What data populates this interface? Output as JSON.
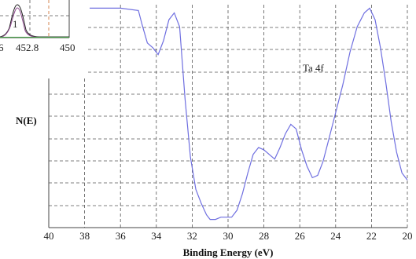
{
  "chart_data": {
    "type": "line",
    "xlabel": "Binding Energy (eV)",
    "ylabel": "N(E)",
    "annotation": "Ta 4f",
    "xlim": [
      40,
      20
    ],
    "x_ticks": [
      "40",
      "38",
      "36",
      "34",
      "32",
      "30",
      "28",
      "26",
      "24",
      "22",
      "20"
    ],
    "grid": true,
    "series_color": "#6f6fe0",
    "series": [
      {
        "x": [
          37.5,
          36.0,
          35.0,
          34.8,
          34.5,
          34.2,
          33.9,
          33.6,
          33.3,
          33.0,
          32.7,
          32.4,
          32.1,
          31.8,
          31.5,
          31.2,
          31.0,
          30.7,
          30.4,
          30.1,
          29.8,
          29.5,
          29.2,
          28.9,
          28.6,
          28.3,
          28.0,
          27.7,
          27.4,
          27.1,
          26.8,
          26.5,
          26.2,
          25.9,
          25.6,
          25.3,
          25.0,
          24.7,
          24.4,
          24.0,
          23.6,
          23.2,
          22.8,
          22.4,
          22.1,
          21.8,
          21.5,
          21.2,
          20.9,
          20.6,
          20.3,
          20.0
        ],
        "y": [
          8.4,
          8.4,
          8.3,
          7.7,
          6.9,
          6.7,
          6.4,
          7.0,
          7.9,
          8.2,
          7.6,
          4.5,
          2.0,
          0.6,
          0.0,
          -0.5,
          -0.7,
          -0.7,
          -0.6,
          -0.6,
          -0.6,
          -0.3,
          0.4,
          1.3,
          2.1,
          2.4,
          2.3,
          2.1,
          1.9,
          2.4,
          3.0,
          3.4,
          3.2,
          2.3,
          1.6,
          1.1,
          1.2,
          1.8,
          2.7,
          3.9,
          5.1,
          6.5,
          7.6,
          8.2,
          8.4,
          7.9,
          6.7,
          5.2,
          3.5,
          2.2,
          1.3,
          1.0
        ]
      }
    ],
    "inset": {
      "x_ticks": [
        "452.8",
        "450"
      ],
      "x_tick_left_partial": "6",
      "peak_label": "1"
    }
  }
}
